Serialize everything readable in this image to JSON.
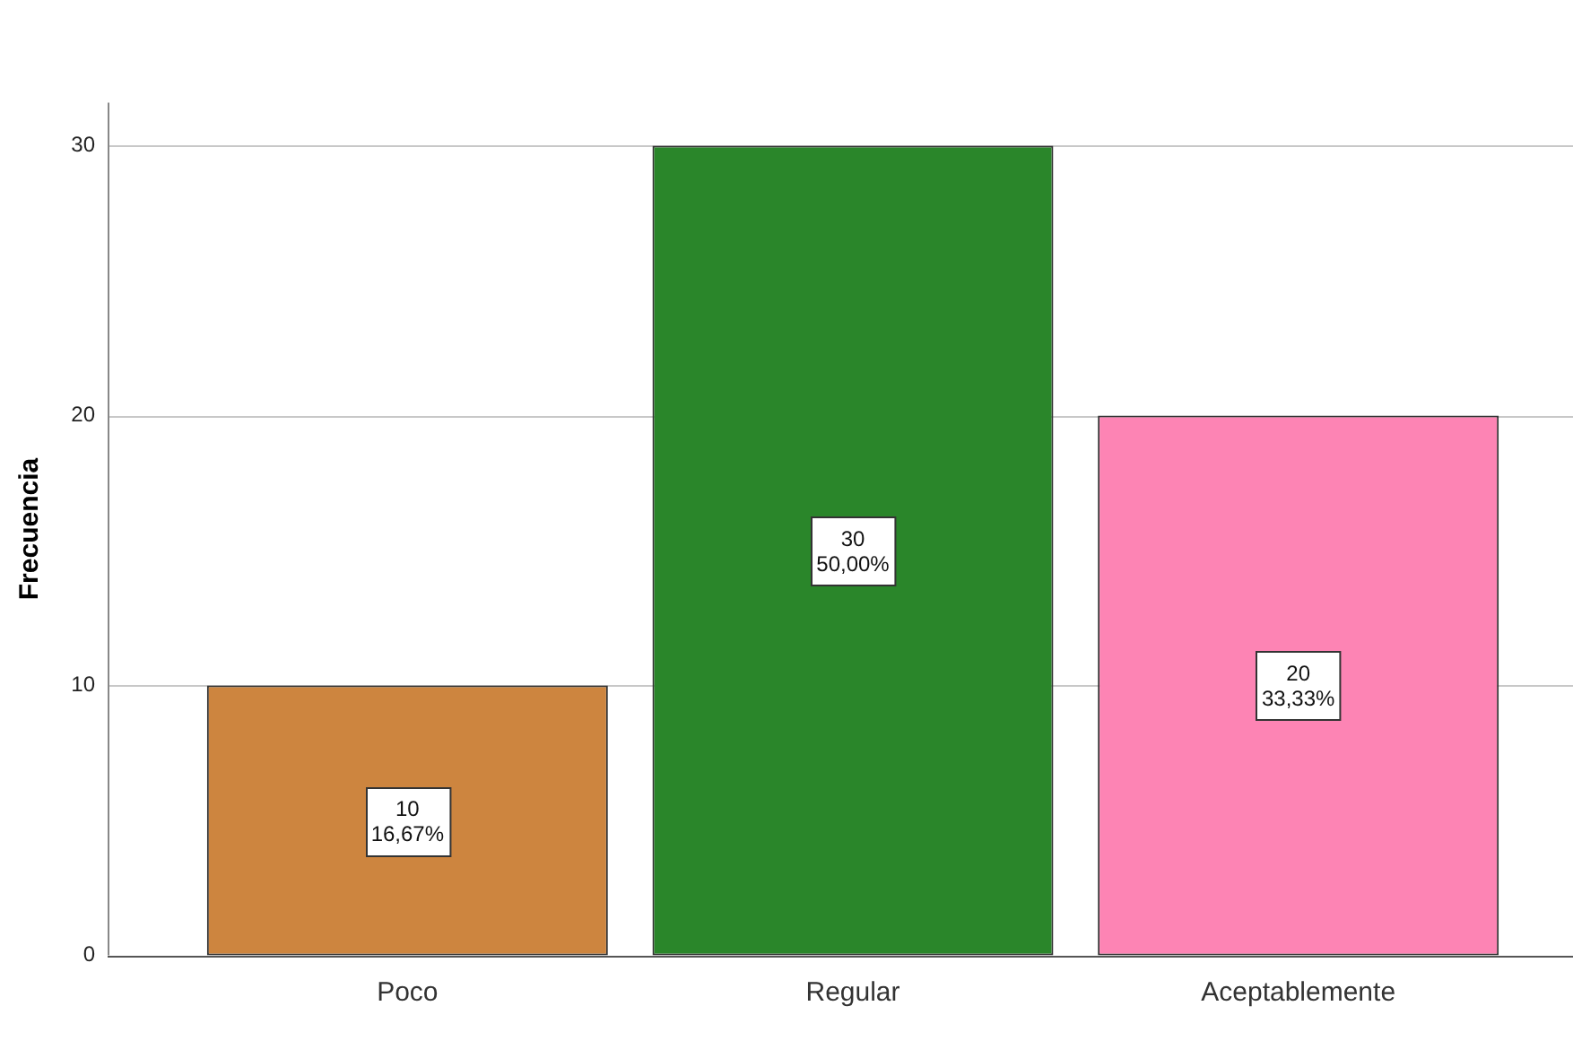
{
  "chart_data": {
    "type": "bar",
    "ylabel": "Frecuencia",
    "categories": [
      "Poco",
      "Regular",
      "Aceptablemente"
    ],
    "values": [
      10,
      30,
      20
    ],
    "colors": [
      "#cd853f",
      "#2a862a",
      "#fd84b4"
    ],
    "value_labels": [
      "10\n16,67%",
      "30\n50,00%",
      "20\n33,33%"
    ],
    "ylim": [
      0,
      31.6
    ],
    "yticks": [
      0,
      10,
      20,
      30
    ],
    "grid": "y"
  }
}
